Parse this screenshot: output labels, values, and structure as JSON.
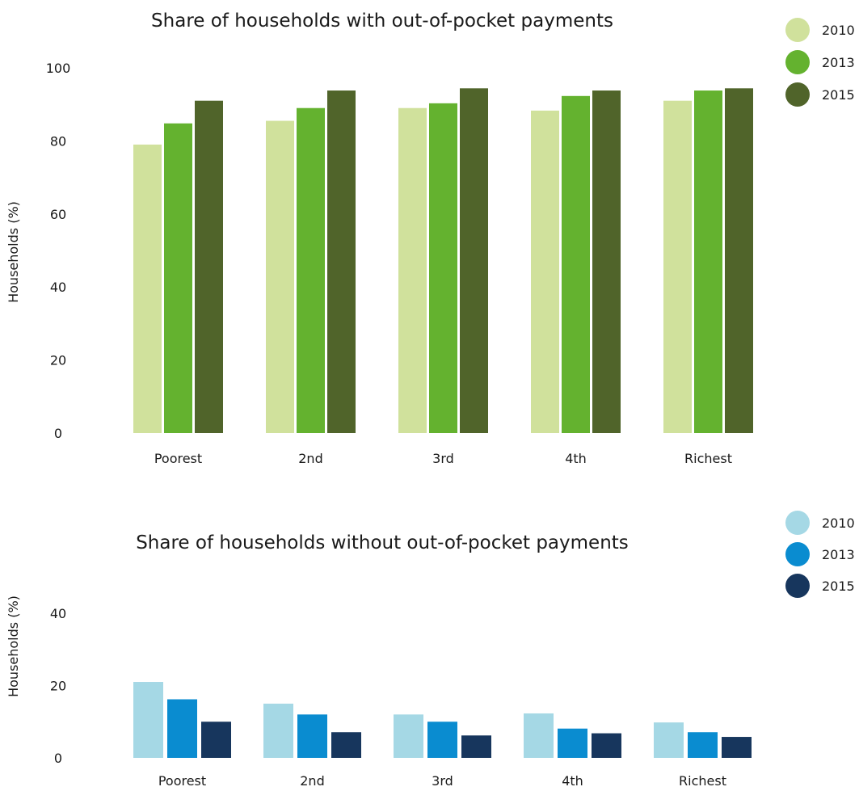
{
  "chart_data": [
    {
      "type": "bar",
      "title": "Share of households with out-of-pocket payments",
      "xlabel": "",
      "ylabel": "Households (%)",
      "ylim": [
        0,
        100
      ],
      "yticks": [
        0,
        20,
        40,
        60,
        80,
        100
      ],
      "categories": [
        "Poorest",
        "2nd",
        "3rd",
        "4th",
        "Richest"
      ],
      "legend_position": "top-right",
      "series": [
        {
          "name": "2010",
          "color": "#d0e19c",
          "values": [
            79,
            85.5,
            89,
            88.3,
            91
          ]
        },
        {
          "name": "2013",
          "color": "#64b22f",
          "values": [
            84.8,
            89,
            90.3,
            92.3,
            93.8
          ]
        },
        {
          "name": "2015",
          "color": "#50642a",
          "values": [
            91,
            93.8,
            94.4,
            93.8,
            94.4
          ]
        }
      ]
    },
    {
      "type": "bar",
      "title": "Share of households without out-of-pocket payments",
      "xlabel": "",
      "ylabel": "Households (%)",
      "ylim": [
        0,
        40
      ],
      "yticks": [
        0,
        20,
        40
      ],
      "categories": [
        "Poorest",
        "2nd",
        "3rd",
        "4th",
        "Richest"
      ],
      "legend_position": "top-right",
      "series": [
        {
          "name": "2010",
          "color": "#a5d8e5",
          "values": [
            21,
            15,
            12,
            12.3,
            9.8
          ]
        },
        {
          "name": "2013",
          "color": "#0a8cd0",
          "values": [
            16.2,
            12,
            10,
            8.1,
            7.1
          ]
        },
        {
          "name": "2015",
          "color": "#17365d",
          "values": [
            10,
            7.1,
            6.2,
            6.8,
            5.8
          ]
        }
      ]
    }
  ]
}
